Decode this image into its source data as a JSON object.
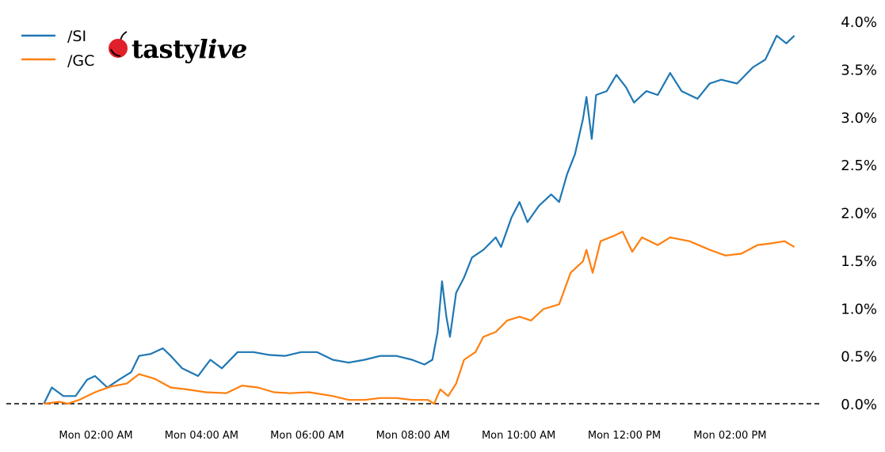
{
  "logo": {
    "text_bold": "tasty",
    "text_italic": "live"
  },
  "chart_data": {
    "type": "line",
    "title": "",
    "xlabel": "",
    "ylabel": "",
    "legend_position": "top-left",
    "grid": false,
    "x_unit": "time of day",
    "ylim": [
      0.0,
      4.0
    ],
    "y_ticks": [
      "0.0%",
      "0.5%",
      "1.0%",
      "1.5%",
      "2.0%",
      "2.5%",
      "3.0%",
      "3.5%",
      "4.0%"
    ],
    "y_tick_values": [
      0,
      0.5,
      1.0,
      1.5,
      2.0,
      2.5,
      3.0,
      3.5,
      4.0
    ],
    "x_ticks": [
      "Mon 02:00 AM",
      "Mon 04:00 AM",
      "Mon 06:00 AM",
      "Mon 08:00 AM",
      "Mon 10:00 AM",
      "Mon 12:00 PM",
      "Mon 02:00 PM"
    ],
    "x_tick_values": [
      "02:00",
      "04:00",
      "06:00",
      "08:00",
      "10:00",
      "12:00",
      "14:00"
    ],
    "reference_line": {
      "y": 0.0,
      "style": "dashed",
      "color": "#000000"
    },
    "series": [
      {
        "name": "/SI",
        "color": "#1f77b4",
        "x": [
          "01:01",
          "01:10",
          "01:23",
          "01:37",
          "01:50",
          "01:59",
          "02:13",
          "02:26",
          "02:40",
          "02:49",
          "03:02",
          "03:16",
          "03:25",
          "03:38",
          "03:56",
          "04:10",
          "04:23",
          "04:41",
          "04:59",
          "05:17",
          "05:35",
          "05:53",
          "06:11",
          "06:29",
          "06:47",
          "07:05",
          "07:23",
          "07:41",
          "07:59",
          "08:13",
          "08:22",
          "08:28",
          "08:33",
          "08:38",
          "08:42",
          "08:49",
          "08:58",
          "09:07",
          "09:20",
          "09:34",
          "09:40",
          "09:52",
          "10:01",
          "10:10",
          "10:23",
          "10:37",
          "10:46",
          "10:55",
          "11:04",
          "11:13",
          "11:17",
          "11:23",
          "11:28",
          "11:40",
          "11:51",
          "12:02",
          "12:11",
          "12:25",
          "12:38",
          "12:52",
          "13:05",
          "13:23",
          "13:37",
          "13:50",
          "14:08",
          "14:26",
          "14:40",
          "14:53",
          "15:04",
          "15:13"
        ],
        "y": [
          0,
          0.17,
          0.08,
          0.08,
          0.25,
          0.29,
          0.17,
          0.25,
          0.33,
          0.5,
          0.52,
          0.58,
          0.5,
          0.37,
          0.29,
          0.46,
          0.37,
          0.54,
          0.54,
          0.51,
          0.5,
          0.54,
          0.54,
          0.46,
          0.43,
          0.46,
          0.5,
          0.5,
          0.46,
          0.41,
          0.46,
          0.75,
          1.28,
          0.91,
          0.7,
          1.16,
          1.32,
          1.53,
          1.61,
          1.74,
          1.64,
          1.95,
          2.11,
          1.9,
          2.07,
          2.19,
          2.11,
          2.4,
          2.61,
          2.98,
          3.21,
          2.77,
          3.23,
          3.27,
          3.44,
          3.31,
          3.15,
          3.27,
          3.23,
          3.46,
          3.27,
          3.19,
          3.35,
          3.39,
          3.35,
          3.52,
          3.6,
          3.85,
          3.77,
          3.85
        ]
      },
      {
        "name": "/GC",
        "color": "#ff7f0e",
        "x": [
          "01:01",
          "01:19",
          "01:28",
          "01:41",
          "01:59",
          "02:17",
          "02:35",
          "02:49",
          "03:07",
          "03:25",
          "03:43",
          "04:05",
          "04:28",
          "04:46",
          "05:04",
          "05:22",
          "05:40",
          "06:02",
          "06:29",
          "06:47",
          "07:05",
          "07:23",
          "07:41",
          "07:59",
          "08:17",
          "08:24",
          "08:31",
          "08:40",
          "08:49",
          "08:58",
          "09:11",
          "09:20",
          "09:34",
          "09:47",
          "10:01",
          "10:14",
          "10:28",
          "10:46",
          "10:59",
          "11:13",
          "11:17",
          "11:24",
          "11:33",
          "11:49",
          "11:58",
          "12:09",
          "12:20",
          "12:38",
          "12:52",
          "13:14",
          "13:37",
          "13:55",
          "14:13",
          "14:31",
          "14:49",
          "15:02",
          "15:13"
        ],
        "y": [
          0,
          0.02,
          0,
          0.04,
          0.12,
          0.18,
          0.21,
          0.31,
          0.26,
          0.17,
          0.15,
          0.12,
          0.11,
          0.19,
          0.17,
          0.12,
          0.11,
          0.12,
          0.08,
          0.04,
          0.04,
          0.06,
          0.06,
          0.04,
          0.04,
          0,
          0.15,
          0.08,
          0.21,
          0.46,
          0.54,
          0.7,
          0.75,
          0.87,
          0.91,
          0.87,
          0.99,
          1.04,
          1.37,
          1.49,
          1.61,
          1.37,
          1.7,
          1.76,
          1.8,
          1.59,
          1.74,
          1.66,
          1.74,
          1.7,
          1.61,
          1.55,
          1.57,
          1.66,
          1.68,
          1.7,
          1.64
        ]
      }
    ]
  }
}
